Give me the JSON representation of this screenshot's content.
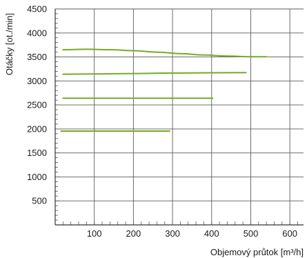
{
  "chart_data": {
    "type": "line",
    "xlabel": "Objemový průtok [m³/h]",
    "ylabel": "Otáčky [ot./min]",
    "xlim": [
      0,
      635
    ],
    "ylim": [
      0,
      4500
    ],
    "x_ticks": [
      "100",
      "200",
      "300",
      "400",
      "500",
      "600"
    ],
    "y_ticks": [
      "500",
      "1000",
      "1500",
      "2000",
      "2500",
      "3000",
      "3500",
      "4000",
      "4500"
    ],
    "grid": true,
    "line_color": "#72ac22",
    "series": [
      {
        "x": [
          20,
          80,
          140,
          200,
          260,
          320,
          380,
          440,
          500,
          540
        ],
        "y": [
          3650,
          3660,
          3650,
          3630,
          3600,
          3570,
          3540,
          3520,
          3505,
          3505
        ]
      },
      {
        "x": [
          20,
          100,
          200,
          300,
          400,
          488
        ],
        "y": [
          3140,
          3145,
          3155,
          3165,
          3170,
          3175
        ]
      },
      {
        "x": [
          20,
          100,
          200,
          300,
          403
        ],
        "y": [
          2640,
          2640,
          2640,
          2640,
          2640
        ]
      },
      {
        "x": [
          15,
          100,
          200,
          293
        ],
        "y": [
          1955,
          1955,
          1955,
          1955
        ]
      }
    ]
  }
}
